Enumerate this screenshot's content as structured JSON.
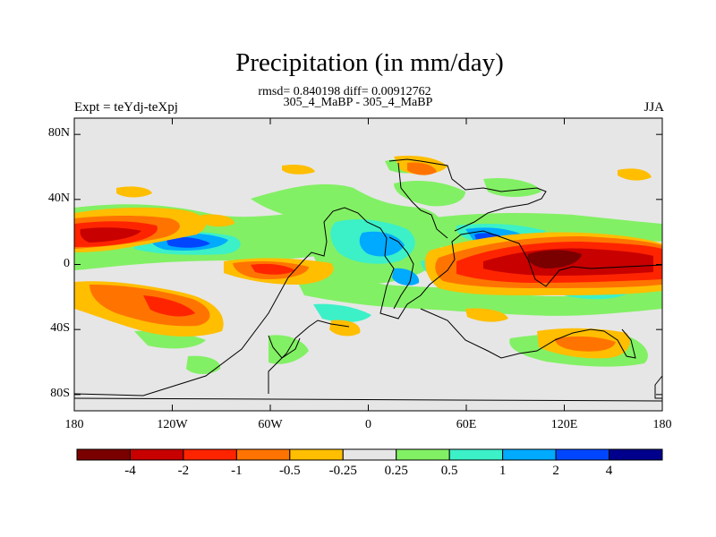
{
  "title": "Precipitation (in mm/day)",
  "stats": "rmsd= 0.840198 diff= 0.00912762",
  "subtitle": "305_4_MaBP - 305_4_MaBP",
  "left_label": "Expt = teYdj-teXpj",
  "right_label": "JJA",
  "axes": {
    "y_ticks": [
      "80N",
      "40N",
      "0",
      "40S",
      "80S"
    ],
    "x_ticks": [
      "180",
      "120W",
      "60W",
      "0",
      "60E",
      "120E",
      "180"
    ]
  },
  "colorbar": {
    "colors": [
      "#7a0000",
      "#c80000",
      "#ff2400",
      "#ff7400",
      "#ffbe00",
      "#e6e6e6",
      "#82f064",
      "#3cf0c8",
      "#00aaff",
      "#0046ff",
      "#00008c"
    ],
    "labels": [
      "-4",
      "-2",
      "-1",
      "-0.5",
      "-0.25",
      "0.25",
      "0.5",
      "1",
      "2",
      "4"
    ]
  },
  "map_colors": {
    "background": "#e6e6e6",
    "coast": "#000000"
  }
}
